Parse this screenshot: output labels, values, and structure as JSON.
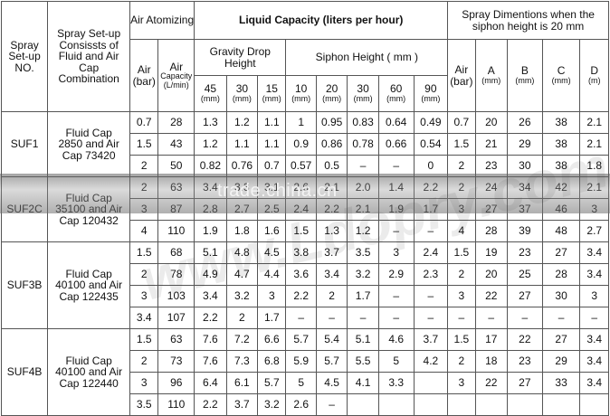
{
  "header": {
    "spray_no": "Spray Set-up NO.",
    "combination": "Spray Set-up Consissts of Fluid and Air Cap Combination",
    "air_atomizing": "Air Atomizing",
    "liquid_capacity": "Liquid Capacity (liters per hour)",
    "spray_dims": "Spray Dimentions when the siphon height is 20 mm",
    "gravity": "Gravity Drop Height",
    "siphon": "Siphon Height ( mm )",
    "air_bar": "Air (bar)",
    "air_capacity_1": "Air",
    "air_capacity_2": "Capacity (L/min)",
    "gravity_cols": [
      {
        "v": "45",
        "u": "(mm)"
      },
      {
        "v": "30",
        "u": "(mm)"
      },
      {
        "v": "15",
        "u": "(mm)"
      }
    ],
    "siphon_cols": [
      {
        "v": "10",
        "u": "(mm)"
      },
      {
        "v": "20",
        "u": "(mm)"
      },
      {
        "v": "30",
        "u": "(mm)"
      },
      {
        "v": "60",
        "u": "(mm)"
      },
      {
        "v": "90",
        "u": "(mm)"
      }
    ],
    "dim_air": "Air (bar)",
    "dim_cols": [
      {
        "v": "A",
        "u": "(mm)"
      },
      {
        "v": "B",
        "u": "(mm)"
      },
      {
        "v": "C",
        "u": "(mm)"
      },
      {
        "v": "D",
        "u": "(m)"
      }
    ]
  },
  "groups": [
    {
      "id": "SUF1",
      "combo": "Fluid Cap 2850 and Air Cap 73420",
      "rows": [
        [
          "0.7",
          "28",
          "1.3",
          "1.2",
          "1.1",
          "1",
          "0.95",
          "0.83",
          "0.64",
          "0.49",
          "0.7",
          "20",
          "26",
          "38",
          "2.1"
        ],
        [
          "1.5",
          "43",
          "1.2",
          "1.1",
          "1.1",
          "0.9",
          "0.86",
          "0.78",
          "0.66",
          "0.54",
          "1.5",
          "21",
          "29",
          "38",
          "2.1"
        ],
        [
          "2",
          "50",
          "0.82",
          "0.76",
          "0.7",
          "0.57",
          "0.5",
          "–",
          "–",
          "0",
          "2",
          "23",
          "30",
          "38",
          "1.8"
        ]
      ]
    },
    {
      "id": "SUF2C",
      "combo": "Fluid Cap 35100 and Air Cap 120432",
      "rows": [
        [
          "2",
          "63",
          "3.4",
          "3.3",
          "3.1",
          "2.6",
          "2.1",
          "2.0",
          "1.4",
          "2.2",
          "2",
          "24",
          "34",
          "42",
          "2.1"
        ],
        [
          "3",
          "87",
          "2.8",
          "2.7",
          "2.5",
          "2.4",
          "2.2",
          "2.1",
          "1.9",
          "1.7",
          "3",
          "27",
          "37",
          "46",
          "3"
        ],
        [
          "4",
          "110",
          "1.9",
          "1.8",
          "1.6",
          "1.5",
          "1.3",
          "1.2",
          "–",
          "–",
          "4",
          "28",
          "39",
          "48",
          "2.7"
        ]
      ]
    },
    {
      "id": "SUF3B",
      "combo": "Fluid Cap 40100 and Air Cap 122435",
      "rows": [
        [
          "1.5",
          "68",
          "5.1",
          "4.8",
          "4.5",
          "3.8",
          "3.7",
          "3.5",
          "3",
          "2.4",
          "1.5",
          "19",
          "23",
          "27",
          "3.4"
        ],
        [
          "2",
          "78",
          "4.9",
          "4.7",
          "4.4",
          "3.6",
          "3.4",
          "3.2",
          "2.9",
          "2.3",
          "2",
          "20",
          "25",
          "28",
          "3.4"
        ],
        [
          "3",
          "103",
          "3.4",
          "3.2",
          "3",
          "2.2",
          "2",
          "1.7",
          "–",
          "–",
          "3",
          "22",
          "27",
          "30",
          "3"
        ],
        [
          "3.4",
          "107",
          "2.2",
          "2",
          "1.7",
          "–",
          "–",
          "–",
          "–",
          "–",
          "–",
          "–",
          "–",
          "–",
          "–"
        ]
      ]
    },
    {
      "id": "SUF4B",
      "combo": "Fluid Cap 40100 and Air Cap 122440",
      "rows": [
        [
          "1.5",
          "63",
          "7.6",
          "7.2",
          "6.6",
          "5.7",
          "5.4",
          "5.1",
          "4.6",
          "3.7",
          "1.5",
          "17",
          "22",
          "27",
          "3.4"
        ],
        [
          "2",
          "73",
          "7.6",
          "7.3",
          "6.8",
          "5.9",
          "5.7",
          "5.5",
          "5",
          "4.2",
          "2",
          "18",
          "23",
          "29",
          "3.4"
        ],
        [
          "3",
          "96",
          "6.4",
          "6.1",
          "5.7",
          "5",
          "4.5",
          "4.1",
          "3.3",
          "",
          "3",
          "22",
          "27",
          "33",
          "3.4"
        ],
        [
          "3.5",
          "110",
          "2.2",
          "3.7",
          "3.2",
          "2.6",
          "–",
          "",
          "",
          "",
          "",
          "",
          "",
          "",
          ""
        ]
      ]
    }
  ],
  "watermark": {
    "text": "trade.china.cn",
    "url": "www.Ldopry.com"
  }
}
